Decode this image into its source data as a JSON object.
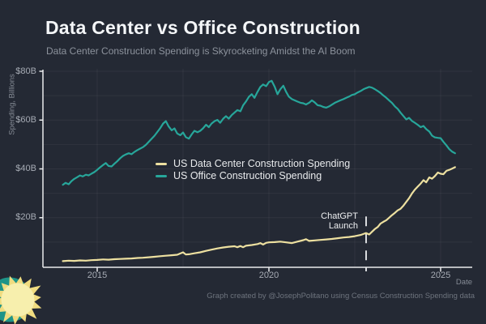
{
  "page": {
    "background": "#242934"
  },
  "header": {
    "title": "Data Center vs Office Construction",
    "subtitle": "Data Center Construction Spending is Skyrocketing Amidst the AI Boom"
  },
  "footer": {
    "credit": "Graph created by @JosephPolitano using Census Construction Spending data"
  },
  "chart_data": {
    "type": "line",
    "title": "Data Center vs Office Construction",
    "subtitle": "Data Center Construction Spending is Skyrocketing Amidst the AI Boom",
    "xlabel": "Date",
    "ylabel": "Spending, Billions",
    "xlim": [
      2013.42,
      2025.92
    ],
    "ylim": [
      0,
      81
    ],
    "grid": {
      "h_values": [
        10,
        20,
        30,
        40,
        50,
        60,
        70,
        80
      ],
      "v_values": [
        2015,
        2017.5,
        2020,
        2022.5,
        2025
      ]
    },
    "x_ticks": [
      {
        "v": 2015,
        "label": "2015"
      },
      {
        "v": 2020,
        "label": "2020"
      },
      {
        "v": 2025,
        "label": "2025"
      }
    ],
    "y_ticks": [
      {
        "v": 20,
        "label": "$20B"
      },
      {
        "v": 40,
        "label": "$40B"
      },
      {
        "v": 60,
        "label": "$60B"
      },
      {
        "v": 80,
        "label": "$80B"
      }
    ],
    "legend_position": "inside upper-middle",
    "annotation": {
      "label": "ChatGPT\nLaunch",
      "x": 2022.83,
      "line_top_value": 20.5
    },
    "axis_color": "#e9eaec",
    "series": [
      {
        "name": "US Data Center Construction Spending",
        "color": "#ede0a0",
        "points": [
          [
            2014.0,
            2.2
          ],
          [
            2014.17,
            2.4
          ],
          [
            2014.33,
            2.3
          ],
          [
            2014.5,
            2.5
          ],
          [
            2014.67,
            2.4
          ],
          [
            2014.83,
            2.6
          ],
          [
            2015.0,
            2.7
          ],
          [
            2015.17,
            2.9
          ],
          [
            2015.33,
            2.8
          ],
          [
            2015.5,
            3.0
          ],
          [
            2015.67,
            3.1
          ],
          [
            2015.83,
            3.2
          ],
          [
            2016.0,
            3.3
          ],
          [
            2016.17,
            3.5
          ],
          [
            2016.33,
            3.6
          ],
          [
            2016.5,
            3.8
          ],
          [
            2016.67,
            4.0
          ],
          [
            2016.83,
            4.2
          ],
          [
            2017.0,
            4.4
          ],
          [
            2017.17,
            4.6
          ],
          [
            2017.33,
            4.8
          ],
          [
            2017.5,
            5.8
          ],
          [
            2017.58,
            4.9
          ],
          [
            2017.67,
            5.0
          ],
          [
            2017.83,
            5.4
          ],
          [
            2018.0,
            5.8
          ],
          [
            2018.17,
            6.4
          ],
          [
            2018.33,
            6.9
          ],
          [
            2018.5,
            7.4
          ],
          [
            2018.67,
            7.8
          ],
          [
            2018.83,
            8.1
          ],
          [
            2019.0,
            8.3
          ],
          [
            2019.08,
            7.9
          ],
          [
            2019.17,
            8.4
          ],
          [
            2019.25,
            7.9
          ],
          [
            2019.33,
            8.5
          ],
          [
            2019.5,
            8.8
          ],
          [
            2019.67,
            9.2
          ],
          [
            2019.75,
            9.6
          ],
          [
            2019.83,
            9.0
          ],
          [
            2019.92,
            9.7
          ],
          [
            2020.0,
            9.9
          ],
          [
            2020.17,
            10.0
          ],
          [
            2020.33,
            10.2
          ],
          [
            2020.5,
            9.9
          ],
          [
            2020.67,
            9.6
          ],
          [
            2020.83,
            10.2
          ],
          [
            2021.0,
            10.8
          ],
          [
            2021.08,
            11.2
          ],
          [
            2021.17,
            10.5
          ],
          [
            2021.33,
            10.7
          ],
          [
            2021.5,
            10.9
          ],
          [
            2021.67,
            11.1
          ],
          [
            2021.83,
            11.3
          ],
          [
            2022.0,
            11.6
          ],
          [
            2022.17,
            11.9
          ],
          [
            2022.33,
            12.1
          ],
          [
            2022.5,
            12.4
          ],
          [
            2022.67,
            12.9
          ],
          [
            2022.75,
            13.3
          ],
          [
            2022.83,
            13.7
          ],
          [
            2022.92,
            13.1
          ],
          [
            2023.0,
            14.2
          ],
          [
            2023.08,
            15.3
          ],
          [
            2023.17,
            16.2
          ],
          [
            2023.25,
            17.6
          ],
          [
            2023.33,
            18.3
          ],
          [
            2023.42,
            19.0
          ],
          [
            2023.5,
            20.0
          ],
          [
            2023.58,
            21.0
          ],
          [
            2023.67,
            22.0
          ],
          [
            2023.75,
            23.0
          ],
          [
            2023.83,
            23.6
          ],
          [
            2023.92,
            25.0
          ],
          [
            2024.0,
            26.5
          ],
          [
            2024.08,
            28.0
          ],
          [
            2024.17,
            30.0
          ],
          [
            2024.25,
            31.5
          ],
          [
            2024.33,
            32.7
          ],
          [
            2024.42,
            34.0
          ],
          [
            2024.5,
            35.4
          ],
          [
            2024.58,
            34.5
          ],
          [
            2024.67,
            36.5
          ],
          [
            2024.75,
            36.0
          ],
          [
            2024.83,
            37.0
          ],
          [
            2024.92,
            38.5
          ],
          [
            2025.0,
            38.0
          ],
          [
            2025.08,
            37.8
          ],
          [
            2025.17,
            39.2
          ],
          [
            2025.25,
            39.6
          ],
          [
            2025.33,
            40.1
          ],
          [
            2025.42,
            40.7
          ]
        ]
      },
      {
        "name": "US Office Construction Spending",
        "color": "#27a69a",
        "points": [
          [
            2014.0,
            33.5
          ],
          [
            2014.08,
            34.3
          ],
          [
            2014.17,
            33.7
          ],
          [
            2014.25,
            35.0
          ],
          [
            2014.33,
            35.9
          ],
          [
            2014.42,
            36.6
          ],
          [
            2014.5,
            37.3
          ],
          [
            2014.58,
            36.9
          ],
          [
            2014.67,
            37.6
          ],
          [
            2014.75,
            37.3
          ],
          [
            2014.83,
            38.0
          ],
          [
            2014.92,
            38.7
          ],
          [
            2015.0,
            39.6
          ],
          [
            2015.08,
            40.6
          ],
          [
            2015.17,
            41.6
          ],
          [
            2015.25,
            42.4
          ],
          [
            2015.33,
            41.2
          ],
          [
            2015.42,
            41.0
          ],
          [
            2015.5,
            42.1
          ],
          [
            2015.58,
            43.1
          ],
          [
            2015.67,
            44.4
          ],
          [
            2015.75,
            45.3
          ],
          [
            2015.83,
            45.9
          ],
          [
            2015.92,
            46.4
          ],
          [
            2016.0,
            46.0
          ],
          [
            2016.08,
            46.9
          ],
          [
            2016.17,
            47.7
          ],
          [
            2016.25,
            48.3
          ],
          [
            2016.33,
            48.9
          ],
          [
            2016.42,
            49.9
          ],
          [
            2016.5,
            51.1
          ],
          [
            2016.58,
            52.3
          ],
          [
            2016.67,
            53.6
          ],
          [
            2016.75,
            55.1
          ],
          [
            2016.83,
            56.6
          ],
          [
            2016.92,
            58.6
          ],
          [
            2017.0,
            59.6
          ],
          [
            2017.08,
            57.4
          ],
          [
            2017.17,
            55.8
          ],
          [
            2017.25,
            56.6
          ],
          [
            2017.33,
            54.5
          ],
          [
            2017.42,
            53.8
          ],
          [
            2017.5,
            54.9
          ],
          [
            2017.58,
            53.0
          ],
          [
            2017.67,
            52.4
          ],
          [
            2017.75,
            54.1
          ],
          [
            2017.83,
            55.6
          ],
          [
            2017.92,
            55.0
          ],
          [
            2018.0,
            55.6
          ],
          [
            2018.08,
            56.6
          ],
          [
            2018.17,
            58.1
          ],
          [
            2018.25,
            57.1
          ],
          [
            2018.33,
            58.6
          ],
          [
            2018.42,
            59.6
          ],
          [
            2018.5,
            60.1
          ],
          [
            2018.58,
            58.9
          ],
          [
            2018.67,
            60.6
          ],
          [
            2018.75,
            61.6
          ],
          [
            2018.83,
            60.6
          ],
          [
            2018.92,
            62.1
          ],
          [
            2019.0,
            63.1
          ],
          [
            2019.08,
            64.1
          ],
          [
            2019.17,
            63.6
          ],
          [
            2019.25,
            66.1
          ],
          [
            2019.33,
            67.6
          ],
          [
            2019.42,
            69.6
          ],
          [
            2019.5,
            70.6
          ],
          [
            2019.58,
            69.1
          ],
          [
            2019.67,
            71.6
          ],
          [
            2019.75,
            73.6
          ],
          [
            2019.83,
            74.6
          ],
          [
            2019.92,
            73.9
          ],
          [
            2020.0,
            75.6
          ],
          [
            2020.08,
            76.1
          ],
          [
            2020.17,
            73.6
          ],
          [
            2020.25,
            70.6
          ],
          [
            2020.33,
            72.6
          ],
          [
            2020.42,
            74.1
          ],
          [
            2020.5,
            71.6
          ],
          [
            2020.58,
            69.6
          ],
          [
            2020.67,
            68.6
          ],
          [
            2020.75,
            68.1
          ],
          [
            2020.83,
            67.6
          ],
          [
            2020.92,
            67.1
          ],
          [
            2021.0,
            66.9
          ],
          [
            2021.08,
            66.4
          ],
          [
            2021.17,
            67.1
          ],
          [
            2021.25,
            68.1
          ],
          [
            2021.33,
            67.3
          ],
          [
            2021.42,
            66.1
          ],
          [
            2021.5,
            65.9
          ],
          [
            2021.58,
            65.4
          ],
          [
            2021.67,
            65.1
          ],
          [
            2021.75,
            65.6
          ],
          [
            2021.83,
            66.3
          ],
          [
            2021.92,
            67.1
          ],
          [
            2022.0,
            67.6
          ],
          [
            2022.08,
            68.1
          ],
          [
            2022.17,
            68.6
          ],
          [
            2022.25,
            69.1
          ],
          [
            2022.33,
            69.6
          ],
          [
            2022.42,
            70.3
          ],
          [
            2022.5,
            70.6
          ],
          [
            2022.58,
            71.3
          ],
          [
            2022.67,
            71.9
          ],
          [
            2022.75,
            72.6
          ],
          [
            2022.83,
            73.1
          ],
          [
            2022.92,
            73.6
          ],
          [
            2023.0,
            73.3
          ],
          [
            2023.08,
            72.7
          ],
          [
            2023.17,
            71.9
          ],
          [
            2023.25,
            71.1
          ],
          [
            2023.33,
            70.1
          ],
          [
            2023.42,
            69.1
          ],
          [
            2023.5,
            68.1
          ],
          [
            2023.58,
            67.1
          ],
          [
            2023.67,
            65.6
          ],
          [
            2023.75,
            64.6
          ],
          [
            2023.83,
            63.1
          ],
          [
            2023.92,
            61.6
          ],
          [
            2024.0,
            60.3
          ],
          [
            2024.08,
            60.9
          ],
          [
            2024.17,
            59.6
          ],
          [
            2024.25,
            58.9
          ],
          [
            2024.33,
            58.1
          ],
          [
            2024.42,
            57.1
          ],
          [
            2024.5,
            57.6
          ],
          [
            2024.58,
            56.3
          ],
          [
            2024.67,
            55.3
          ],
          [
            2024.75,
            53.6
          ],
          [
            2024.83,
            52.9
          ],
          [
            2024.92,
            52.7
          ],
          [
            2025.0,
            52.6
          ],
          [
            2025.08,
            51.1
          ],
          [
            2025.17,
            49.6
          ],
          [
            2025.25,
            48.1
          ],
          [
            2025.33,
            47.1
          ],
          [
            2025.42,
            46.4
          ]
        ]
      }
    ]
  },
  "logo": {
    "name": "sun",
    "body_color": "#f7efad",
    "ray_color": "#f0dc80",
    "crescent_color": "#1e9488"
  }
}
